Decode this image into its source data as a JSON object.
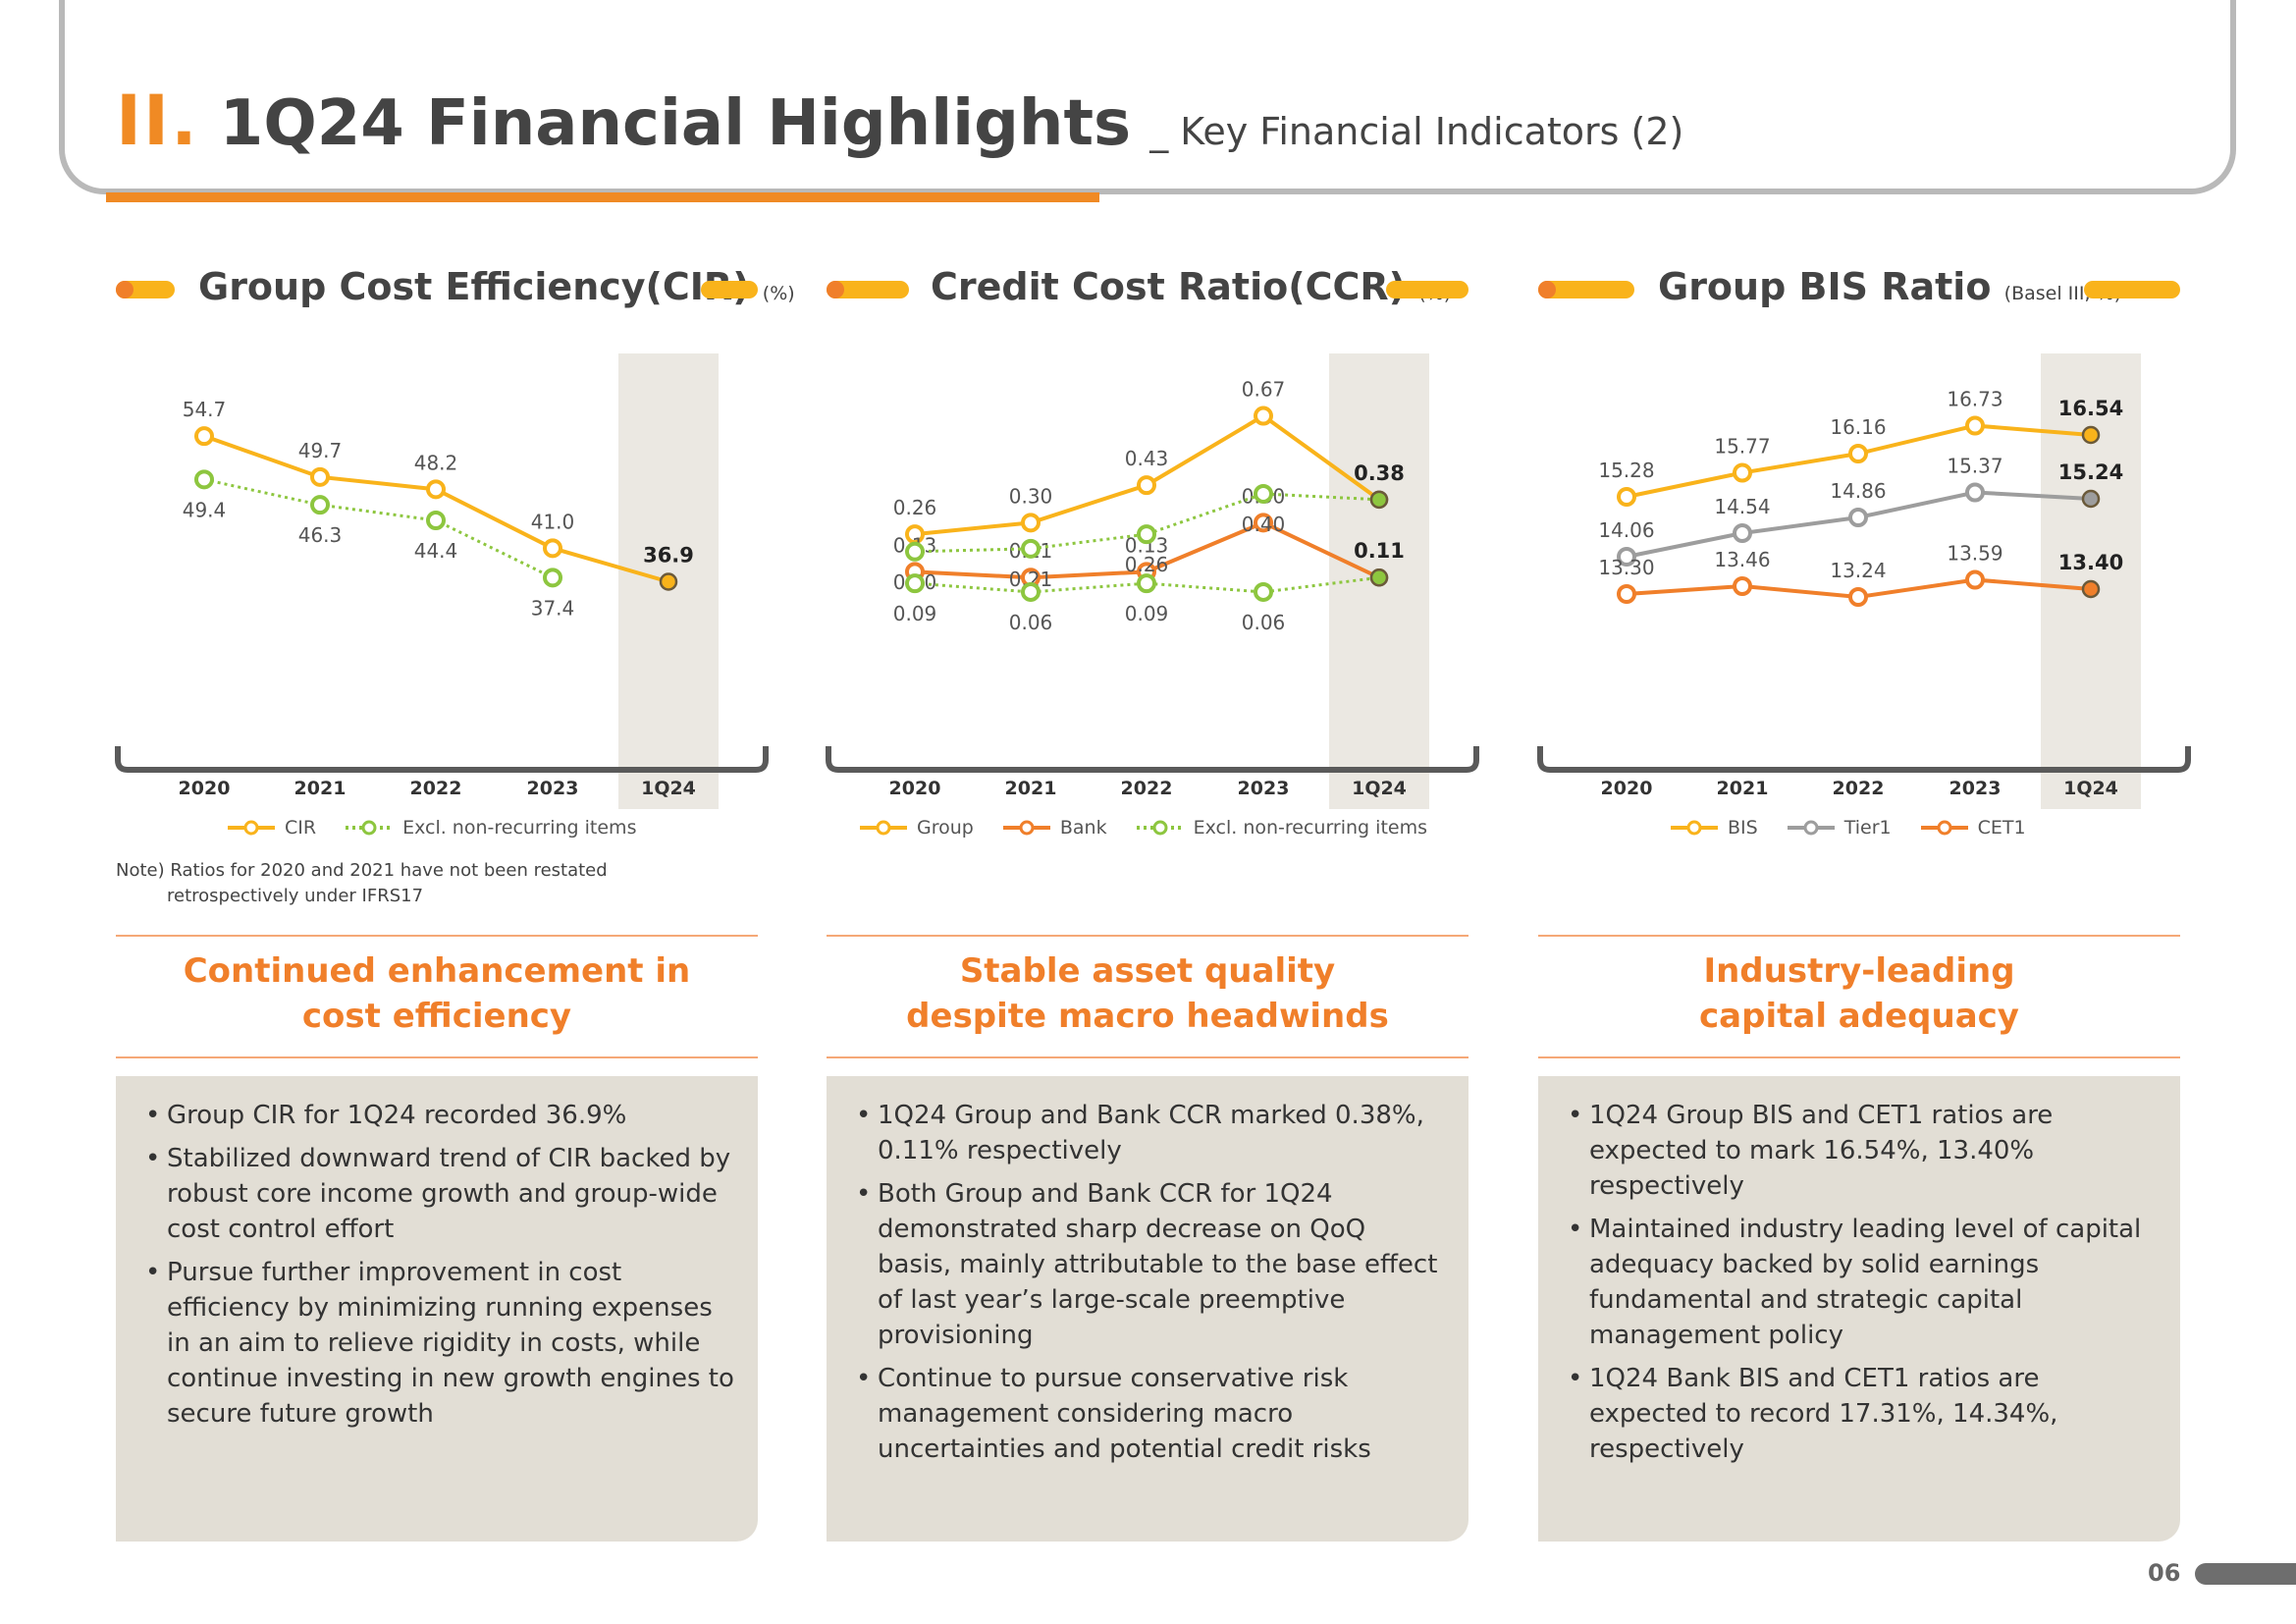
{
  "header": {
    "section_num": "II.",
    "title": "1Q24 Financial Highlights",
    "subtitle": "_ Key Financial Indicators (2)"
  },
  "colors": {
    "orange": "#f07f2a",
    "yellow": "#f9b31b",
    "green": "#8dc63f",
    "gray": "#9d9d9d",
    "highlight_band": "#ebe8e2",
    "box_bg": "#e2ded5"
  },
  "sections": [
    {
      "title": "Group Cost Efficiency(CIR)",
      "unit": "(%)",
      "headline_lines": [
        "Continued enhancement in",
        "cost efficiency"
      ],
      "bullets": [
        "Group CIR for 1Q24 recorded 36.9%",
        "Stabilized downward trend of CIR backed by robust core income growth and group-wide cost control effort",
        "Pursue further improvement in cost efficiency by minimizing running expenses in an aim to relieve rigidity in costs, while continue investing in new growth engines to secure future growth"
      ],
      "note_lines": [
        "Note) Ratios for 2020 and 2021 have not been restated",
        "retrospectively under IFRS17"
      ]
    },
    {
      "title": "Credit Cost Ratio(CCR)",
      "unit": "(%)",
      "headline_lines": [
        "Stable asset quality",
        "despite macro headwinds"
      ],
      "bullets": [
        "1Q24 Group and Bank CCR marked 0.38%, 0.11% respectively",
        "Both Group and Bank CCR for 1Q24 demonstrated sharp decrease on QoQ basis, mainly attributable to the base effect of last year’s large-scale preemptive provisioning",
        "Continue to pursue conservative risk management considering macro uncertainties and potential credit risks"
      ]
    },
    {
      "title": "Group BIS Ratio",
      "unit": "(Basel III, %)",
      "headline_lines": [
        "Industry-leading",
        "capital adequacy"
      ],
      "bullets": [
        "1Q24 Group BIS and CET1 ratios are expected to mark 16.54%, 13.40% respectively",
        "Maintained industry leading level of capital adequacy backed by solid earnings fundamental and strategic capital management policy",
        "1Q24 Bank BIS and CET1 ratios are expected to record 17.31%, 14.34%, respectively"
      ]
    }
  ],
  "chart_data": [
    {
      "type": "line",
      "categories": [
        "2020",
        "2021",
        "2022",
        "2023",
        "1Q24"
      ],
      "highlight_category": "1Q24",
      "ylim": [
        30,
        60
      ],
      "grid": false,
      "legend_placement": "bottom",
      "series": [
        {
          "name": "CIR",
          "color": "#f9b31b",
          "style": "solid",
          "values": [
            54.7,
            49.7,
            48.2,
            41.0,
            36.9
          ],
          "labels": [
            "54.7",
            "49.7",
            "48.2",
            "41.0",
            "36.9"
          ],
          "label_pos": [
            "above",
            "above",
            "above",
            "above",
            "above"
          ]
        },
        {
          "name": "Excl. non-recurring items",
          "color": "#8dc63f",
          "style": "dotted",
          "values": [
            49.4,
            46.3,
            44.4,
            37.4,
            null
          ],
          "labels": [
            "49.4",
            "46.3",
            "44.4",
            "37.4",
            null
          ],
          "label_pos": [
            "below",
            "below",
            "below",
            "below",
            null
          ]
        }
      ]
    },
    {
      "type": "line",
      "categories": [
        "2020",
        "2021",
        "2022",
        "2023",
        "1Q24"
      ],
      "highlight_category": "1Q24",
      "ylim": [
        -0.1,
        0.75
      ],
      "grid": false,
      "legend_placement": "bottom",
      "series": [
        {
          "name": "Group",
          "color": "#f9b31b",
          "style": "solid",
          "values": [
            0.26,
            0.3,
            0.43,
            0.67,
            0.38
          ],
          "labels": [
            "0.26",
            "0.30",
            "0.43",
            "0.67",
            "0.38"
          ],
          "label_pos": [
            "above",
            "above",
            "above",
            "above",
            "above"
          ]
        },
        {
          "name": "Bank",
          "color": "#f07f2a",
          "style": "solid",
          "values": [
            0.13,
            0.11,
            0.13,
            0.3,
            0.11
          ],
          "labels": [
            "0.13",
            "0.11",
            "0.13",
            "0.30",
            "0.11"
          ],
          "label_pos": [
            "above",
            "above",
            "above",
            "above",
            "above"
          ]
        },
        {
          "name": "Excl. non-recurring items",
          "color": "#8dc63f",
          "style": "dotted",
          "values": [
            0.2,
            0.21,
            0.26,
            0.4,
            0.38
          ],
          "labels": [
            "0.20",
            "0.21",
            "0.26",
            "0.40",
            null
          ],
          "label_pos": [
            "below",
            "below",
            "below",
            "below",
            null
          ]
        },
        {
          "name": "Excl. non-recurring items (Bank)",
          "color": "#8dc63f",
          "style": "dotted",
          "values": [
            0.09,
            0.06,
            0.09,
            0.06,
            0.11
          ],
          "labels": [
            "0.09",
            "0.06",
            "0.09",
            "0.06",
            null
          ],
          "label_pos": [
            "below",
            "below",
            "below",
            "below",
            null
          ]
        }
      ]
    },
    {
      "type": "line",
      "categories": [
        "2020",
        "2021",
        "2022",
        "2023",
        "1Q24"
      ],
      "highlight_category": "1Q24",
      "ylim": [
        12.4,
        17.4
      ],
      "grid": false,
      "legend_placement": "bottom",
      "series": [
        {
          "name": "BIS",
          "color": "#f9b31b",
          "style": "solid",
          "values": [
            15.28,
            15.77,
            16.16,
            16.73,
            16.54
          ],
          "labels": [
            "15.28",
            "15.77",
            "16.16",
            "16.73",
            "16.54"
          ],
          "label_pos": [
            "above",
            "above",
            "above",
            "above",
            "above"
          ]
        },
        {
          "name": "Tier1",
          "color": "#9d9d9d",
          "style": "solid",
          "values": [
            14.06,
            14.54,
            14.86,
            15.37,
            15.24
          ],
          "labels": [
            "14.06",
            "14.54",
            "14.86",
            "15.37",
            "15.24"
          ],
          "label_pos": [
            "above",
            "above",
            "above",
            "above",
            "above"
          ]
        },
        {
          "name": "CET1",
          "color": "#f07f2a",
          "style": "solid",
          "values": [
            13.3,
            13.46,
            13.24,
            13.59,
            13.4
          ],
          "labels": [
            "13.30",
            "13.46",
            "13.24",
            "13.59",
            "13.40"
          ],
          "label_pos": [
            "above",
            "above",
            "above",
            "above",
            "above"
          ]
        }
      ]
    }
  ],
  "legends": [
    [
      {
        "name": "CIR",
        "color": "#f9b31b",
        "style": "solid"
      },
      {
        "name": "Excl. non-recurring items",
        "color": "#8dc63f",
        "style": "dotted"
      }
    ],
    [
      {
        "name": "Group",
        "color": "#f9b31b",
        "style": "solid"
      },
      {
        "name": "Bank",
        "color": "#f07f2a",
        "style": "solid"
      },
      {
        "name": "Excl. non-recurring items",
        "color": "#8dc63f",
        "style": "dotted"
      }
    ],
    [
      {
        "name": "BIS",
        "color": "#f9b31b",
        "style": "solid"
      },
      {
        "name": "Tier1",
        "color": "#9d9d9d",
        "style": "solid"
      },
      {
        "name": "CET1",
        "color": "#f07f2a",
        "style": "solid"
      }
    ]
  ],
  "page_number": "06"
}
